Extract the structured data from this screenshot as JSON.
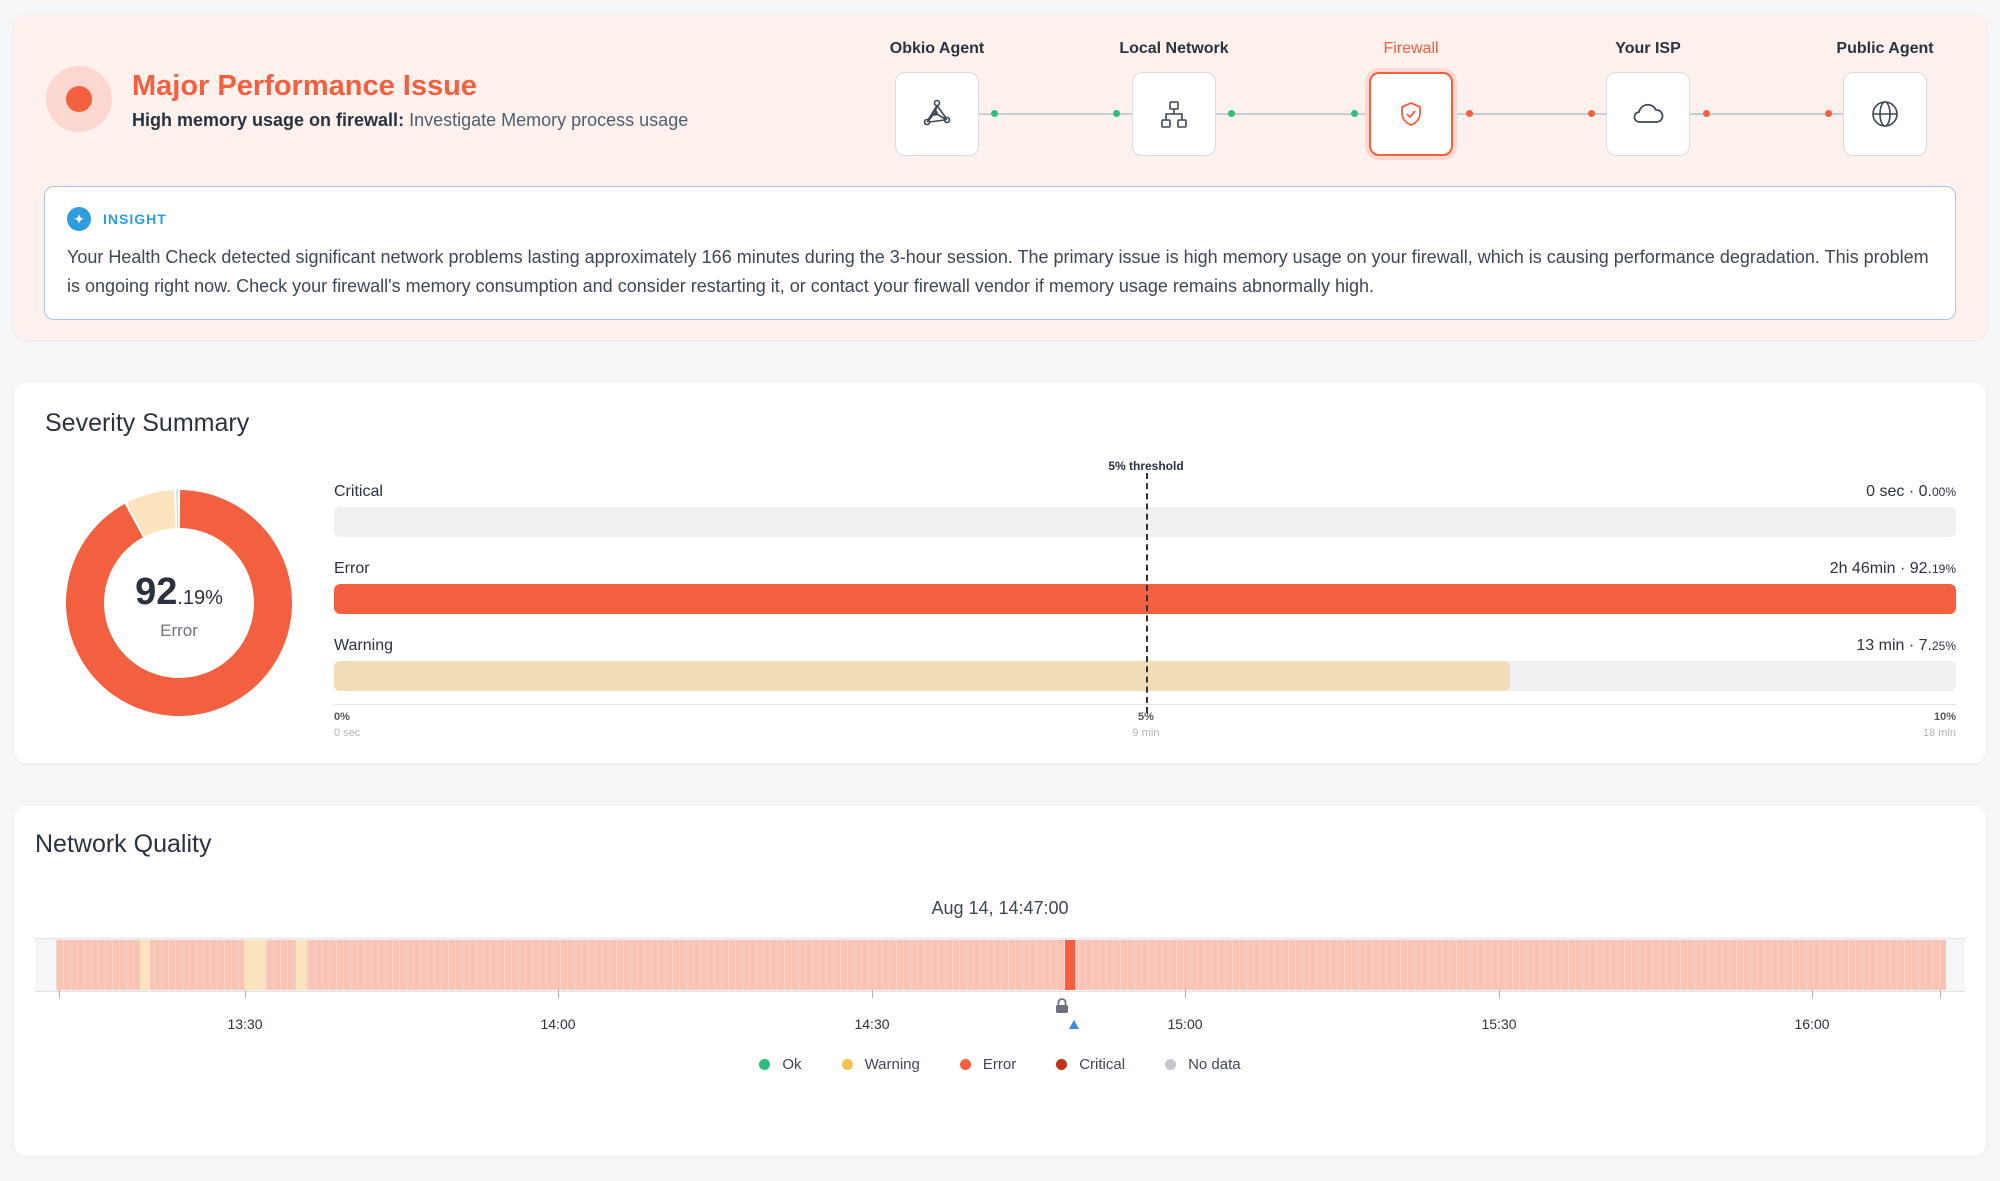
{
  "issue": {
    "title": "Major Performance Issue",
    "subtitle_bold": "High memory usage on firewall:",
    "subtitle_link": "Investigate Memory process usage",
    "color": "#f2603f"
  },
  "path": {
    "nodes": [
      {
        "label": "Obkio Agent",
        "icon": "agent-icon",
        "status": "ok"
      },
      {
        "label": "Local Network",
        "icon": "network-icon",
        "status": "ok"
      },
      {
        "label": "Firewall",
        "icon": "shield-icon",
        "status": "error"
      },
      {
        "label": "Your ISP",
        "icon": "cloud-icon",
        "status": "error"
      },
      {
        "label": "Public Agent",
        "icon": "globe-icon",
        "status": "error"
      }
    ]
  },
  "insight": {
    "label": "INSIGHT",
    "text": "Your Health Check detected significant network problems lasting approximately 166 minutes during the 3-hour session. The primary issue is high memory usage on your firewall, which is causing performance degradation. This problem is ongoing right now. Check your firewall's memory consumption and consider restarting it, or contact your firewall vendor if memory usage remains abnormally high."
  },
  "severity": {
    "title": "Severity Summary",
    "donut": {
      "value_main": "92",
      "value_decimal": ".19%",
      "label": "Error",
      "error_pct": 92.19,
      "warning_pct": 7.25,
      "ok_pct": 0.56
    },
    "threshold_label": "5% threshold",
    "rows": [
      {
        "label": "Critical",
        "value": "0 sec · 0.",
        "value_small": "00%",
        "fill_fraction": 0.0,
        "color": "#eef0f2"
      },
      {
        "label": "Error",
        "value": "2h 46min · 92.",
        "value_small": "19%",
        "fill_fraction": 1.0,
        "color": "#f2603f"
      },
      {
        "label": "Warning",
        "value": "13 min · 7.",
        "value_small": "25%",
        "fill_fraction": 0.725,
        "color": "#f2dcb6"
      }
    ],
    "axis": [
      {
        "label": "0%",
        "sub": "0 sec"
      },
      {
        "label": "5%",
        "sub": "9 min"
      },
      {
        "label": "10%",
        "sub": "18 min"
      }
    ]
  },
  "network": {
    "title": "Network Quality",
    "timestamp": "Aug 14, 14:47:00",
    "time_labels": [
      "13:30",
      "14:00",
      "14:30",
      "15:00",
      "15:30",
      "16:00"
    ],
    "legend": [
      {
        "label": "Ok",
        "color": "#2fbf7b"
      },
      {
        "label": "Warning",
        "color": "#f2c14a"
      },
      {
        "label": "Error",
        "color": "#f2603f"
      },
      {
        "label": "Critical",
        "color": "#c0321a"
      },
      {
        "label": "No data",
        "color": "#c4c7cc"
      }
    ]
  }
}
